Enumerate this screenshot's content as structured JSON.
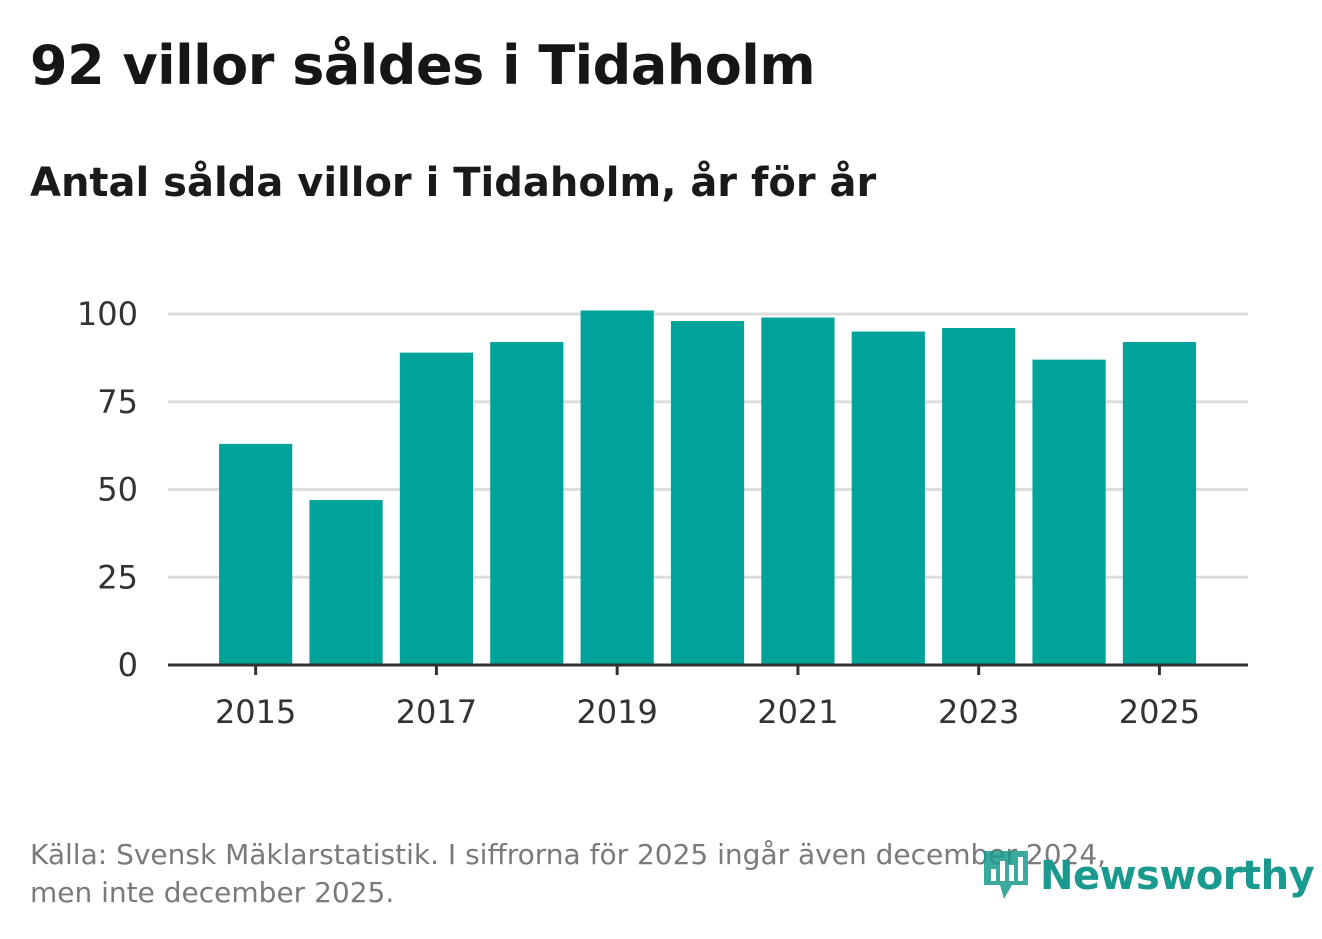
{
  "title": "92 villor såldes i Tidaholm",
  "subtitle": "Antal sålda villor i Tidaholm, år för år",
  "source_line1": "Källa: Svensk Mäklarstatistik. I siffrorna för 2025 ingår även december 2024,",
  "source_line2": "men inte december 2025.",
  "logo_text": "Newsworthy",
  "colors": {
    "bar": "#00A39A",
    "grid": "#dddddd",
    "axis": "#333333",
    "logo": "#1a9a8e"
  },
  "chart_data": {
    "type": "bar",
    "title": "Antal sålda villor i Tidaholm, år för år",
    "xlabel": "",
    "ylabel": "",
    "categories": [
      "2015",
      "2016",
      "2017",
      "2018",
      "2019",
      "2020",
      "2021",
      "2022",
      "2023",
      "2024",
      "2025"
    ],
    "values": [
      63,
      47,
      89,
      92,
      101,
      98,
      99,
      95,
      96,
      87,
      92
    ],
    "x_tick_labels": [
      "2015",
      "2017",
      "2019",
      "2021",
      "2023",
      "2025"
    ],
    "y_ticks": [
      0,
      25,
      50,
      75,
      100
    ],
    "ylim": [
      0,
      100
    ],
    "grid": true
  }
}
